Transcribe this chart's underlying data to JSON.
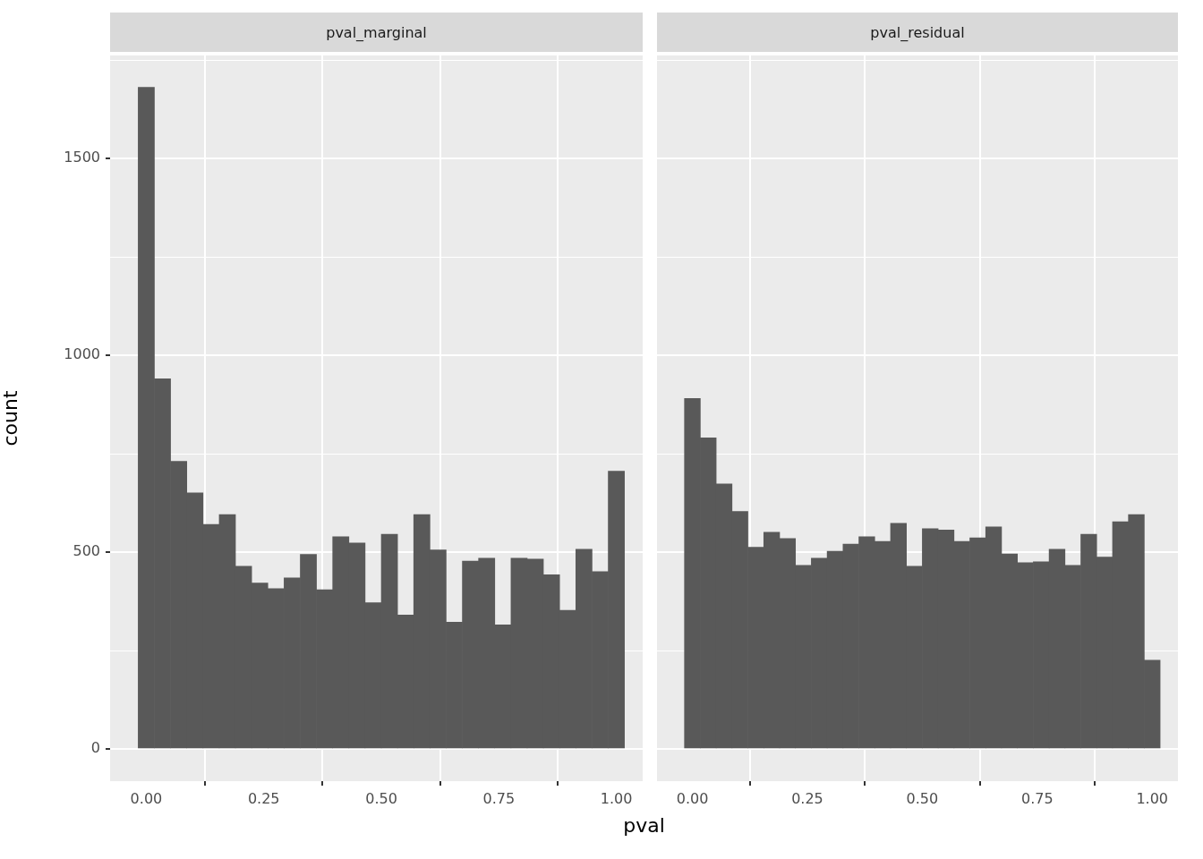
{
  "chart_data": [
    {
      "type": "histogram",
      "title": "pval_marginal",
      "xlabel": "pval",
      "ylabel": "count",
      "color": "#595959",
      "grid": true,
      "bins": [
        -0.0172,
        0.0172,
        0.0517,
        0.0862,
        0.1207,
        0.1552,
        0.1897,
        0.2241,
        0.2586,
        0.2931,
        0.3276,
        0.3621,
        0.3966,
        0.431,
        0.4655,
        0.5,
        0.5345,
        0.569,
        0.6034,
        0.6379,
        0.6724,
        0.7069,
        0.7414,
        0.7759,
        0.8103,
        0.8448,
        0.8793,
        0.9138,
        0.9483,
        0.9828,
        1.0172
      ],
      "values": [
        1680,
        940,
        730,
        650,
        570,
        595,
        464,
        421,
        407,
        434,
        494,
        404,
        539,
        523,
        371,
        545,
        340,
        595,
        505,
        322,
        477,
        484,
        315,
        484,
        482,
        442,
        352,
        507,
        450,
        705
      ],
      "xlim": [
        -0.077,
        1.056
      ],
      "ylim": [
        -82,
        1761
      ],
      "xticks": [
        {
          "value": 0,
          "label": "0.00"
        },
        {
          "value": 0.25,
          "label": "0.25"
        },
        {
          "value": 0.5,
          "label": "0.50"
        },
        {
          "value": 0.75,
          "label": "0.75"
        },
        {
          "value": 1,
          "label": "1.00"
        }
      ],
      "yticks": [
        0,
        500,
        1000,
        1500
      ]
    },
    {
      "type": "histogram",
      "title": "pval_residual",
      "color": "#595959",
      "grid": true,
      "tick_labels": "x",
      "bins": [
        -0.0172,
        0.0172,
        0.0517,
        0.0862,
        0.1207,
        0.1552,
        0.1897,
        0.2241,
        0.2586,
        0.2931,
        0.3276,
        0.3621,
        0.3966,
        0.431,
        0.4655,
        0.5,
        0.5345,
        0.569,
        0.6034,
        0.6379,
        0.6724,
        0.7069,
        0.7414,
        0.7759,
        0.8103,
        0.8448,
        0.8793,
        0.9138,
        0.9483,
        0.9828,
        1.0172
      ],
      "values": [
        890,
        790,
        673,
        603,
        512,
        550,
        534,
        466,
        484,
        502,
        520,
        539,
        527,
        573,
        464,
        559,
        556,
        527,
        536,
        564,
        495,
        473,
        475,
        507,
        466,
        545,
        487,
        577,
        595,
        225
      ],
      "xlim": [
        -0.077,
        1.056
      ],
      "ylim": [
        -82,
        1761
      ],
      "xticks": [
        {
          "value": 0,
          "label": "0.00"
        },
        {
          "value": 0.25,
          "label": "0.25"
        },
        {
          "value": 0.5,
          "label": "0.50"
        },
        {
          "value": 0.75,
          "label": "0.75"
        },
        {
          "value": 1,
          "label": "1.00"
        }
      ],
      "yticks": [
        0,
        500,
        1000,
        1500
      ]
    }
  ]
}
